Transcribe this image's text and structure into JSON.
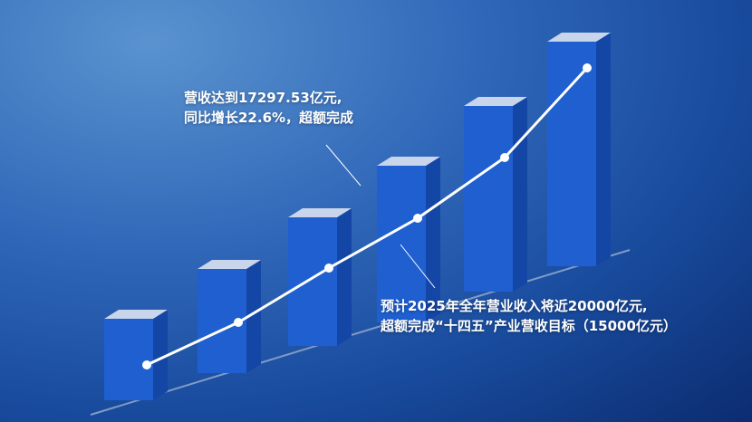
{
  "chart_data": {
    "type": "bar",
    "style": "3d-bars-with-trend-line",
    "categories": [
      "",
      "",
      "",
      "",
      "",
      ""
    ],
    "values": [
      90,
      115,
      142,
      173,
      205,
      248
    ],
    "trend_line": [
      1,
      2,
      3,
      4,
      5,
      6
    ],
    "grid": false,
    "axes_labeled": false,
    "colors": {
      "bar_front": "#1f5fd0",
      "bar_side": "#1446a6",
      "bar_top": "#c8d5ea",
      "line": "#ffffff",
      "background": "#2a5db0"
    },
    "annotations": [
      {
        "lines": [
          "营收达到17297.53亿元,",
          "同比增长22.6%，超额完成"
        ]
      },
      {
        "lines": [
          "预计2025年全年营业收入将近20000亿元,",
          "超额完成“十四五”产业营收目标（15000亿元）"
        ]
      }
    ]
  }
}
